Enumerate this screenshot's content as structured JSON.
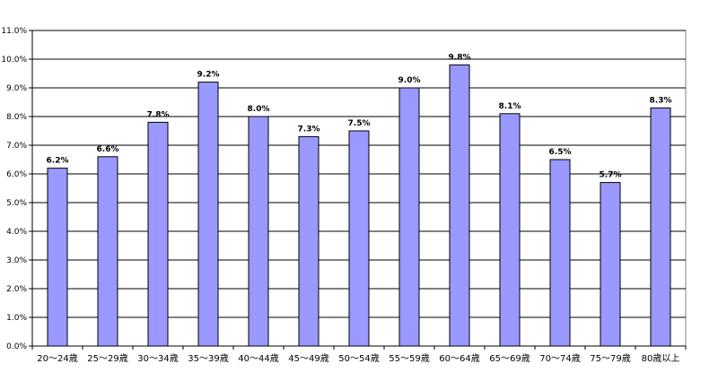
{
  "chart_data": {
    "type": "bar",
    "title": "",
    "xlabel": "",
    "ylabel": "",
    "ylim": [
      0,
      11
    ],
    "yticks": [
      "0.0%",
      "1.0%",
      "2.0%",
      "3.0%",
      "4.0%",
      "5.0%",
      "6.0%",
      "7.0%",
      "8.0%",
      "9.0%",
      "10.0%",
      "11.0%"
    ],
    "grid": true,
    "legend": "none",
    "bar_color": "#9999FF",
    "categories": [
      "20～24歳",
      "25～29歳",
      "30～34歳",
      "35～39歳",
      "40～44歳",
      "45～49歳",
      "50～54歳",
      "55～59歳",
      "60～64歳",
      "65～69歳",
      "70～74歳",
      "75～79歳",
      "80歳以上"
    ],
    "values": [
      6.2,
      6.6,
      7.8,
      9.2,
      8.0,
      7.3,
      7.5,
      9.0,
      9.8,
      8.1,
      6.5,
      5.7,
      8.3
    ],
    "data_labels": [
      "6.2%",
      "6.6%",
      "7.8%",
      "9.2%",
      "8.0%",
      "7.3%",
      "7.5%",
      "9.0%",
      "9.8%",
      "8.1%",
      "6.5%",
      "5.7%",
      "8.3%"
    ]
  }
}
